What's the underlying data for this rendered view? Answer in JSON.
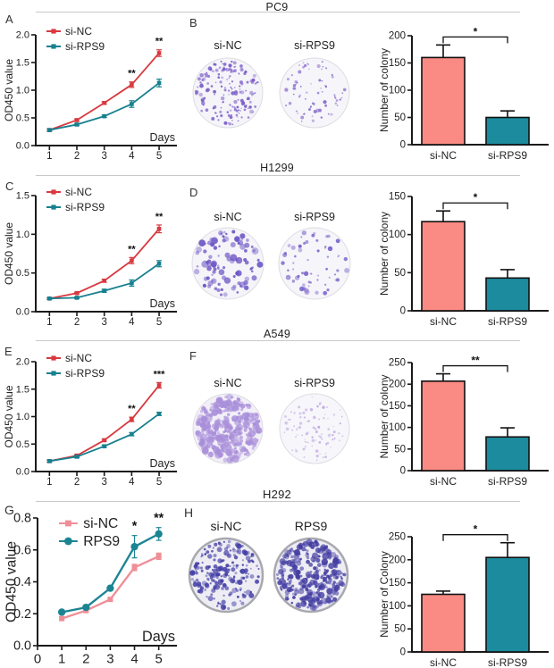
{
  "rows": [
    {
      "title": "PC9",
      "letters": [
        "A",
        "B"
      ],
      "plate_labels": [
        "si-NC",
        "si-RPS9"
      ],
      "plates": [
        {
          "seed": 7,
          "count": 170,
          "dot_color": "#7a5bc8",
          "dot_min": 0.8,
          "dot_max": 2.4,
          "bg": "#f5f4f9",
          "rim": "#dcdce2",
          "rim_w": 1
        },
        {
          "seed": 8,
          "count": 72,
          "dot_color": "#8468cc",
          "dot_min": 0.8,
          "dot_max": 2.2,
          "bg": "#f6f5f9",
          "rim": "#dcdce2",
          "rim_w": 1
        }
      ]
    },
    {
      "title": "H1299",
      "letters": [
        "C",
        "D"
      ],
      "plate_labels": [
        "si-NC",
        "si-RPS9"
      ],
      "plates": [
        {
          "seed": 9,
          "count": 95,
          "dot_color": "#6b54c4",
          "dot_min": 1.2,
          "dot_max": 4.0,
          "bg": "#f5f4f9",
          "rim": "#dcdce2",
          "rim_w": 1
        },
        {
          "seed": 10,
          "count": 60,
          "dot_color": "#7a63cc",
          "dot_min": 1.0,
          "dot_max": 3.2,
          "bg": "#f6f5f9",
          "rim": "#dcdce2",
          "rim_w": 1
        }
      ]
    },
    {
      "title": "A549",
      "letters": [
        "E",
        "F"
      ],
      "plate_labels": [
        "si-NC",
        "si-RPS9"
      ],
      "plates": [
        {
          "seed": 11,
          "count": 300,
          "dot_color": "#a98fd9",
          "dot_min": 1.4,
          "dot_max": 4.4,
          "bg": "#f2eff9",
          "rim": "#dcdce2",
          "rim_w": 1
        },
        {
          "seed": 12,
          "count": 95,
          "dot_color": "#bfaae3",
          "dot_min": 0.7,
          "dot_max": 1.9,
          "bg": "#f7f6fa",
          "rim": "#dcdce2",
          "rim_w": 1
        }
      ]
    },
    {
      "title": "H292",
      "letters": [
        "G",
        "H"
      ],
      "plate_labels": [
        "si-NC",
        "RPS9"
      ],
      "plates": [
        {
          "seed": 13,
          "count": 210,
          "dot_color": "#4540a6",
          "dot_min": 1.0,
          "dot_max": 3.2,
          "bg": "#eeedf4",
          "rim": "#a8a8af",
          "rim_w": 2.5
        },
        {
          "seed": 14,
          "count": 300,
          "dot_color": "#443ea2",
          "dot_min": 1.1,
          "dot_max": 3.8,
          "bg": "#eeedf4",
          "rim": "#a8a8af",
          "rim_w": 2.5
        }
      ]
    }
  ],
  "chart_data": [
    {
      "type": "line",
      "panel": "A",
      "cell_line": "PC9",
      "xlabel": "Days",
      "ylabel": "OD450 value",
      "x": [
        1,
        2,
        3,
        4,
        5
      ],
      "xticks": [
        1,
        2,
        3,
        4,
        5
      ],
      "xlim": [
        0.5,
        5.65
      ],
      "ylim": [
        0,
        2
      ],
      "yticks": [
        0,
        0.5,
        1,
        1.5,
        2
      ],
      "series": [
        {
          "name": "si-NC",
          "color": "#d8393f",
          "marker": "square",
          "values": [
            0.28,
            0.46,
            0.77,
            1.1,
            1.67
          ],
          "err": [
            0.02,
            0.02,
            0.02,
            0.05,
            0.06
          ]
        },
        {
          "name": "si-RPS9",
          "color": "#17808f",
          "marker": "square",
          "values": [
            0.28,
            0.38,
            0.53,
            0.75,
            1.13
          ],
          "err": [
            0.02,
            0.02,
            0.02,
            0.06,
            0.07
          ]
        }
      ],
      "annotations": [
        {
          "x": 4,
          "text": "**"
        },
        {
          "x": 5,
          "text": "**"
        }
      ]
    },
    {
      "type": "bar",
      "panel": "B",
      "cell_line": "PC9",
      "ylabel": "Number of colony",
      "categories": [
        "si-NC",
        "si-RPS9"
      ],
      "values": [
        160,
        50
      ],
      "err": [
        23,
        12
      ],
      "colors": [
        "#f98b84",
        "#1c8b9d"
      ],
      "ylim": [
        0,
        200
      ],
      "yticks": [
        0,
        50,
        100,
        150,
        200
      ],
      "sig": "*"
    },
    {
      "type": "line",
      "panel": "C",
      "cell_line": "H1299",
      "xlabel": "Days",
      "ylabel": "OD450 value",
      "x": [
        1,
        2,
        3,
        4,
        5
      ],
      "xticks": [
        1,
        2,
        3,
        4,
        5
      ],
      "xlim": [
        0.5,
        5.65
      ],
      "ylim": [
        0,
        1.5
      ],
      "yticks": [
        0,
        0.5,
        1,
        1.5
      ],
      "series": [
        {
          "name": "si-NC",
          "color": "#d8393f",
          "marker": "square",
          "values": [
            0.17,
            0.24,
            0.4,
            0.66,
            1.07
          ],
          "err": [
            0.01,
            0.01,
            0.02,
            0.04,
            0.05
          ]
        },
        {
          "name": "si-RPS9",
          "color": "#17808f",
          "marker": "square",
          "values": [
            0.17,
            0.18,
            0.27,
            0.37,
            0.62
          ],
          "err": [
            0.01,
            0.01,
            0.02,
            0.04,
            0.04
          ]
        }
      ],
      "annotations": [
        {
          "x": 4,
          "text": "**"
        },
        {
          "x": 5,
          "text": "**"
        }
      ]
    },
    {
      "type": "bar",
      "panel": "D",
      "cell_line": "H1299",
      "ylabel": "Number of colony",
      "categories": [
        "si-NC",
        "si-RPS9"
      ],
      "values": [
        117,
        43
      ],
      "err": [
        14,
        11
      ],
      "colors": [
        "#f98b84",
        "#1c8b9d"
      ],
      "ylim": [
        0,
        150
      ],
      "yticks": [
        0,
        50,
        100,
        150
      ],
      "sig": "*"
    },
    {
      "type": "line",
      "panel": "E",
      "cell_line": "A549",
      "xlabel": "Days",
      "ylabel": "OD450 value",
      "x": [
        1,
        2,
        3,
        4,
        5
      ],
      "xticks": [
        1,
        2,
        3,
        4,
        5
      ],
      "xlim": [
        0.5,
        5.65
      ],
      "ylim": [
        0,
        2
      ],
      "yticks": [
        0,
        0.5,
        1,
        1.5,
        2
      ],
      "series": [
        {
          "name": "si-NC",
          "color": "#d8393f",
          "marker": "square",
          "values": [
            0.19,
            0.29,
            0.57,
            0.95,
            1.57
          ],
          "err": [
            0.02,
            0.02,
            0.02,
            0.04,
            0.05
          ]
        },
        {
          "name": "si-RPS9",
          "color": "#17808f",
          "marker": "square",
          "values": [
            0.19,
            0.27,
            0.46,
            0.68,
            1.05
          ],
          "err": [
            0.02,
            0.02,
            0.02,
            0.03,
            0.03
          ]
        }
      ],
      "annotations": [
        {
          "x": 4,
          "text": "**"
        },
        {
          "x": 5,
          "text": "***"
        }
      ]
    },
    {
      "type": "bar",
      "panel": "F",
      "cell_line": "A549",
      "ylabel": "Number of colony",
      "categories": [
        "si-NC",
        "si-RPS9"
      ],
      "values": [
        207,
        78
      ],
      "err": [
        17,
        21
      ],
      "colors": [
        "#f98b84",
        "#1c8b9d"
      ],
      "ylim": [
        0,
        250
      ],
      "yticks": [
        0,
        50,
        100,
        150,
        200,
        250
      ],
      "sig": "**"
    },
    {
      "type": "line",
      "panel": "G",
      "cell_line": "H292",
      "xlabel": "Days",
      "ylabel": "OD450 value",
      "x": [
        1,
        2,
        3,
        4,
        5
      ],
      "xticks": [
        0,
        1,
        2,
        3,
        4,
        5
      ],
      "xlim": [
        0,
        5.75
      ],
      "ylim": [
        0,
        0.8
      ],
      "yticks": [
        0,
        0.2,
        0.4,
        0.6,
        0.8
      ],
      "series": [
        {
          "name": "si-NC",
          "color": "#ef8e96",
          "marker": "square",
          "values": [
            0.17,
            0.22,
            0.29,
            0.49,
            0.56
          ],
          "err": [
            0.01,
            0.01,
            0.01,
            0.02,
            0.02
          ]
        },
        {
          "name": "RPS9",
          "color": "#1b8493",
          "marker": "circle",
          "values": [
            0.21,
            0.24,
            0.36,
            0.62,
            0.7
          ],
          "err": [
            0.01,
            0.01,
            0.01,
            0.07,
            0.04
          ]
        }
      ],
      "annotations": [
        {
          "x": 4,
          "text": "*"
        },
        {
          "x": 5,
          "text": "**"
        }
      ]
    },
    {
      "type": "bar",
      "panel": "H",
      "cell_line": "H292",
      "ylabel": "Number of Colony",
      "categories": [
        "si-NC",
        "si-RPS9"
      ],
      "values": [
        125,
        205
      ],
      "err": [
        7,
        32
      ],
      "colors": [
        "#f98b84",
        "#1c8b9d"
      ],
      "ylim": [
        0,
        250
      ],
      "yticks": [
        0,
        50,
        100,
        150,
        200,
        250
      ],
      "sig": "*"
    }
  ],
  "colors": {
    "si_nc_line": "#d8393f",
    "si_rps9_line": "#17808f",
    "bar_pink": "#f98b84",
    "bar_teal": "#1c8b9d",
    "divider": "#c9c9c9"
  }
}
